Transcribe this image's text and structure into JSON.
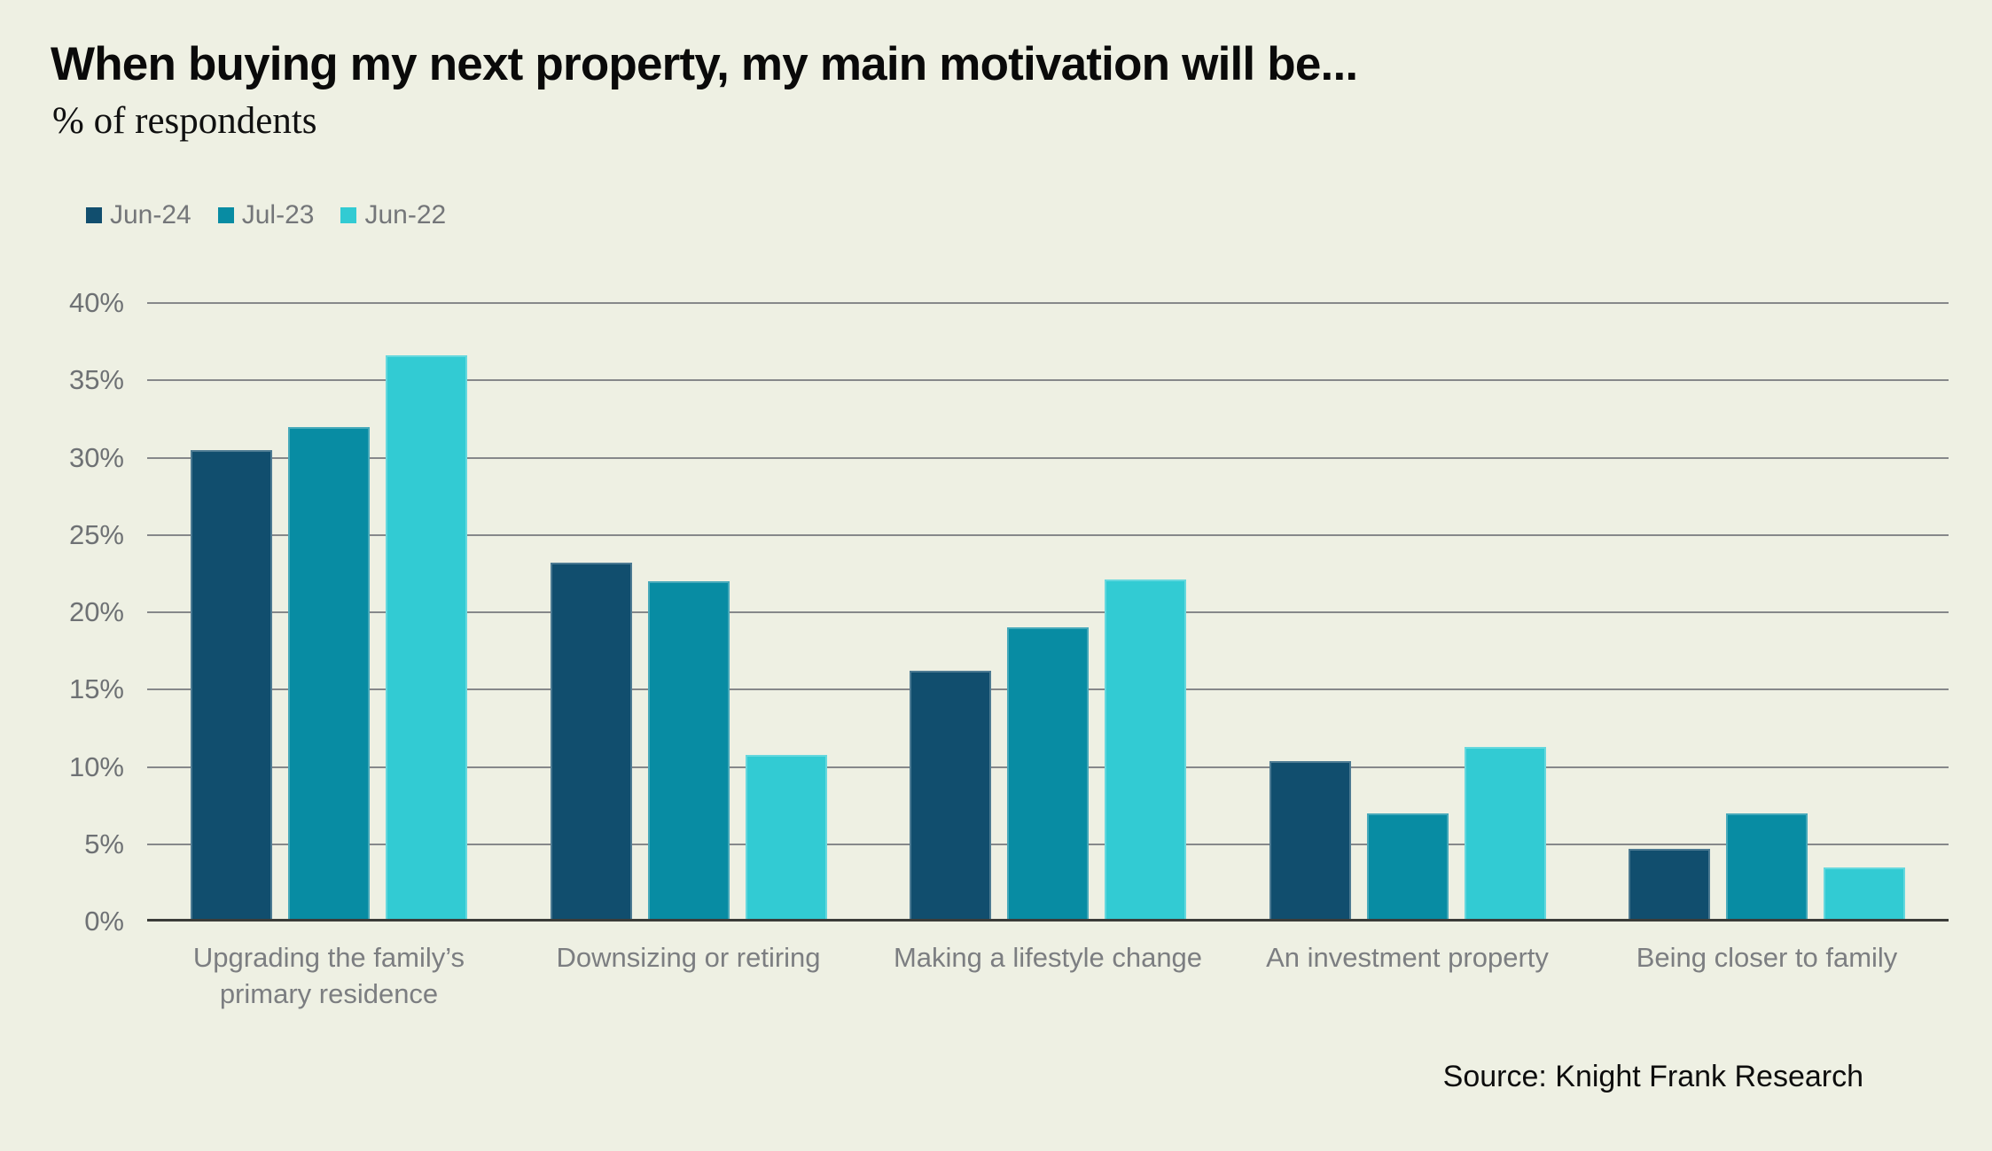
{
  "page": {
    "background_color": "#EEF0E3"
  },
  "chart_data": {
    "type": "bar",
    "title": "When buying my next property, my main motivation will be...",
    "subtitle": "% of respondents",
    "categories": [
      "Upgrading the family’s\nprimary residence",
      "Downsizing or retiring",
      "Making a lifestyle change",
      "An investment property",
      "Being closer to family"
    ],
    "series": [
      {
        "name": "Jun-24",
        "color": "#114E6E",
        "values": [
          30.5,
          23.2,
          16.2,
          10.4,
          4.7
        ]
      },
      {
        "name": "Jul-23",
        "color": "#088CA3",
        "values": [
          32.0,
          22.0,
          19.0,
          7.0,
          7.0
        ]
      },
      {
        "name": "Jun-22",
        "color": "#32CBD3",
        "values": [
          36.6,
          10.8,
          22.1,
          11.3,
          3.5
        ]
      }
    ],
    "xlabel": "",
    "ylabel": "% of respondents",
    "ylim": [
      0,
      40
    ],
    "ytick_step": 5,
    "ytick_labels": [
      "0%",
      "5%",
      "10%",
      "15%",
      "20%",
      "25%",
      "30%",
      "35%",
      "40%"
    ],
    "grid": true,
    "legend_position": "top-left",
    "gridline_color": "#86888A",
    "baseline_color": "#3B3C39",
    "axis_label_color": "#6E7174",
    "category_label_color": "#7C7E81",
    "legend_text_color": "#747679",
    "source": "Source: Knight Frank Research"
  }
}
